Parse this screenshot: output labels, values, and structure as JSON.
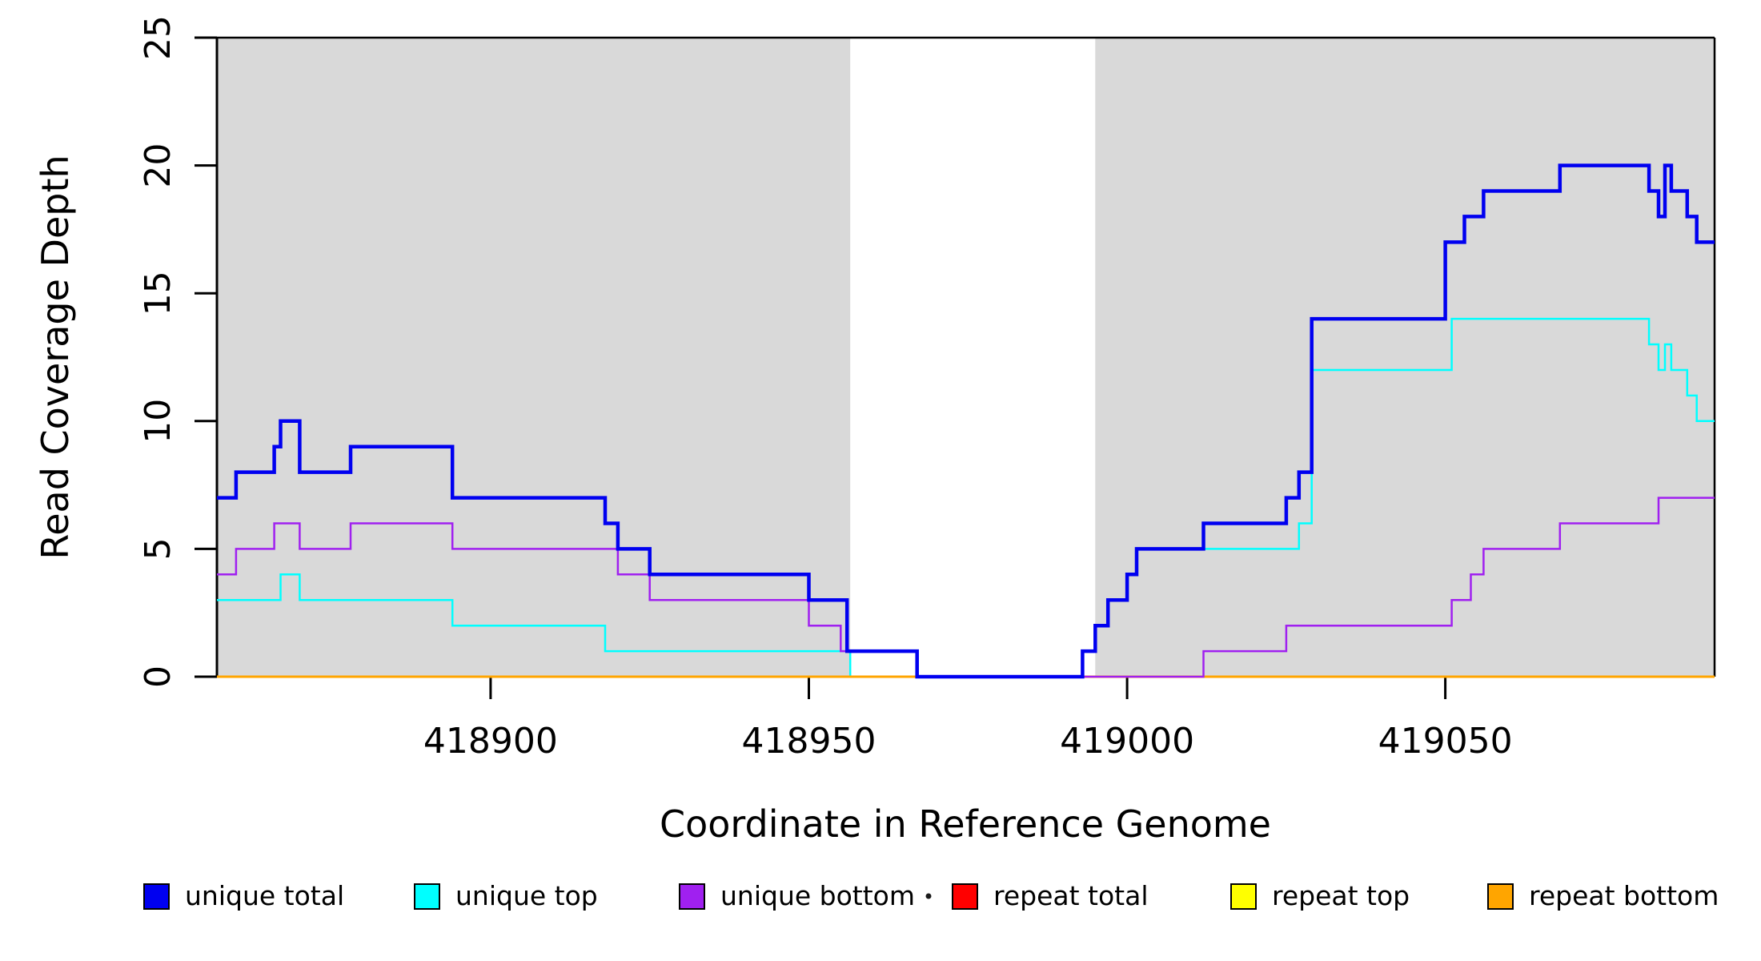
{
  "chart_data": {
    "type": "line",
    "subtype": "step-coverage-plot",
    "title": "",
    "xlabel": "Coordinate in Reference Genome",
    "ylabel": "Read Coverage Depth",
    "xlim": [
      418857,
      419092.3
    ],
    "ylim": [
      0,
      25
    ],
    "x_ticks": [
      418900,
      418950,
      419000,
      419050
    ],
    "y_ticks": [
      0,
      5,
      10,
      15,
      20,
      25
    ],
    "grid": false,
    "legend_position": "bottom",
    "background_color": "#ffffff",
    "shade_color": "#d9d9d9",
    "axis_color": "#000000",
    "shaded_regions": [
      [
        418857,
        418956.5
      ],
      [
        418995,
        419092.3
      ]
    ],
    "draw_order": [
      "repeat total",
      "repeat top",
      "unique top",
      "repeat bottom",
      "unique bottom",
      "unique total"
    ],
    "series": [
      {
        "name": "unique total",
        "color": "#0000f0",
        "width": 4.5,
        "steps": [
          [
            418857,
            7
          ],
          [
            418860,
            8
          ],
          [
            418866,
            9
          ],
          [
            418867,
            10
          ],
          [
            418870,
            8
          ],
          [
            418878,
            9
          ],
          [
            418894,
            7
          ],
          [
            418918,
            6
          ],
          [
            418920,
            5
          ],
          [
            418925,
            4
          ],
          [
            418950,
            3
          ],
          [
            418956,
            1
          ],
          [
            418967,
            0
          ],
          [
            418993,
            1
          ],
          [
            418995,
            2
          ],
          [
            418997,
            3
          ],
          [
            419000,
            4
          ],
          [
            419001.5,
            5
          ],
          [
            419012,
            6
          ],
          [
            419025,
            7
          ],
          [
            419027,
            8
          ],
          [
            419029,
            14
          ],
          [
            419050,
            17
          ],
          [
            419053,
            18
          ],
          [
            419056,
            19
          ],
          [
            419068,
            20
          ],
          [
            419082,
            19
          ],
          [
            419083.5,
            18
          ],
          [
            419084.5,
            20
          ],
          [
            419085.5,
            19
          ],
          [
            419088,
            18
          ],
          [
            419089.5,
            17
          ],
          [
            419092.3,
            17
          ]
        ]
      },
      {
        "name": "unique top",
        "color": "#00ffff",
        "width": 2.5,
        "steps": [
          [
            418857,
            3
          ],
          [
            418867,
            4
          ],
          [
            418870,
            3
          ],
          [
            418894,
            2
          ],
          [
            418918,
            1
          ],
          [
            418956.5,
            0
          ],
          [
            418993,
            1
          ],
          [
            418995,
            2
          ],
          [
            418997,
            3
          ],
          [
            419000,
            4
          ],
          [
            419001.5,
            5
          ],
          [
            419027,
            6
          ],
          [
            419029,
            12
          ],
          [
            419051,
            14
          ],
          [
            419082,
            13
          ],
          [
            419083.5,
            12
          ],
          [
            419084.5,
            13
          ],
          [
            419085.5,
            12
          ],
          [
            419088,
            11
          ],
          [
            419089.5,
            10
          ],
          [
            419092.3,
            10
          ]
        ]
      },
      {
        "name": "unique bottom",
        "color": "#a020f0",
        "width": 2.5,
        "steps": [
          [
            418857,
            4
          ],
          [
            418860,
            5
          ],
          [
            418866,
            6
          ],
          [
            418870,
            5
          ],
          [
            418878,
            6
          ],
          [
            418894,
            5
          ],
          [
            418920,
            4
          ],
          [
            418925,
            3
          ],
          [
            418950,
            2
          ],
          [
            418955,
            1
          ],
          [
            418967,
            0
          ],
          [
            419012,
            1
          ],
          [
            419025,
            2
          ],
          [
            419051,
            3
          ],
          [
            419054,
            4
          ],
          [
            419056,
            5
          ],
          [
            419068,
            6
          ],
          [
            419083.5,
            7
          ],
          [
            419092.3,
            7
          ]
        ]
      },
      {
        "name": "repeat total",
        "color": "#ff0000",
        "width": 2.5,
        "steps": [
          [
            418857,
            0
          ],
          [
            419092.3,
            0
          ]
        ]
      },
      {
        "name": "repeat top",
        "color": "#ffff00",
        "width": 2.5,
        "steps": [
          [
            418857,
            0
          ],
          [
            419092.3,
            0
          ]
        ]
      },
      {
        "name": "repeat bottom",
        "color": "#ffa500",
        "width": 3,
        "steps": [
          [
            418857,
            0
          ],
          [
            419092.3,
            0
          ]
        ]
      }
    ]
  }
}
